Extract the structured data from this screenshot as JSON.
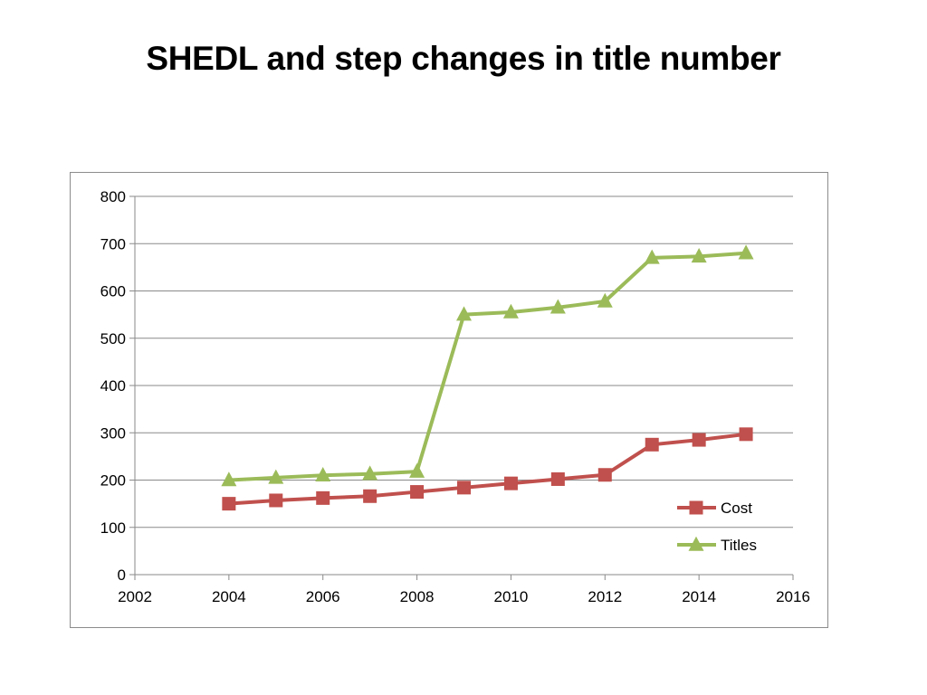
{
  "slide": {
    "title": "SHEDL and step changes in title number"
  },
  "chart_data": {
    "type": "line",
    "title": "",
    "xlabel": "",
    "ylabel": "",
    "xlim": [
      2002,
      2016
    ],
    "ylim": [
      0,
      800
    ],
    "x_ticks": [
      "2002",
      "2004",
      "2006",
      "2008",
      "2010",
      "2012",
      "2014",
      "2016"
    ],
    "y_ticks": [
      "0",
      "100",
      "200",
      "300",
      "400",
      "500",
      "600",
      "700",
      "800"
    ],
    "grid": "horizontal",
    "legend_position": "bottom-right",
    "x": [
      2004,
      2005,
      2006,
      2007,
      2008,
      2009,
      2010,
      2011,
      2012,
      2013,
      2014,
      2015
    ],
    "series": [
      {
        "name": "Cost",
        "color": "#c0504d",
        "marker": "square",
        "values": [
          150,
          157,
          162,
          166,
          175,
          184,
          193,
          202,
          211,
          275,
          285,
          297
        ]
      },
      {
        "name": "Titles",
        "color": "#9bbb59",
        "marker": "triangle",
        "values": [
          200,
          205,
          210,
          213,
          218,
          550,
          555,
          565,
          578,
          670,
          673,
          680
        ]
      }
    ]
  }
}
